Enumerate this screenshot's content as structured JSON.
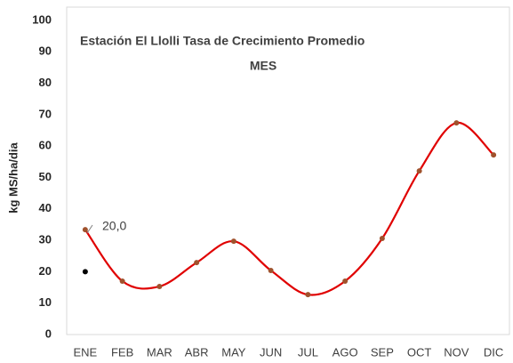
{
  "chart_data": {
    "type": "line",
    "title": "Estación El Llolli  Tasa de Crecimiento Promedio",
    "subtitle": "MES",
    "y_label": "kg MS/ha/dia",
    "categories": [
      "ENE",
      "FEB",
      "MAR",
      "ABR",
      "MAY",
      "JUN",
      "JUL",
      "AGO",
      "SEP",
      "OCT",
      "NOV",
      "DIC"
    ],
    "values": [
      33.4,
      17,
      15.3,
      22.9,
      29.7,
      20.4,
      12.7,
      17,
      30.6,
      52.1,
      67.4,
      57.2
    ],
    "color": "#e00000",
    "marker_color": "#a0522d",
    "smooth": true,
    "ylim": [
      0,
      100
    ],
    "yticks": [
      0,
      10,
      20,
      30,
      40,
      50,
      60,
      70,
      80,
      90,
      100
    ],
    "grid": false,
    "marker": {
      "value": 20,
      "label": "20,0",
      "color": "#000000"
    }
  }
}
